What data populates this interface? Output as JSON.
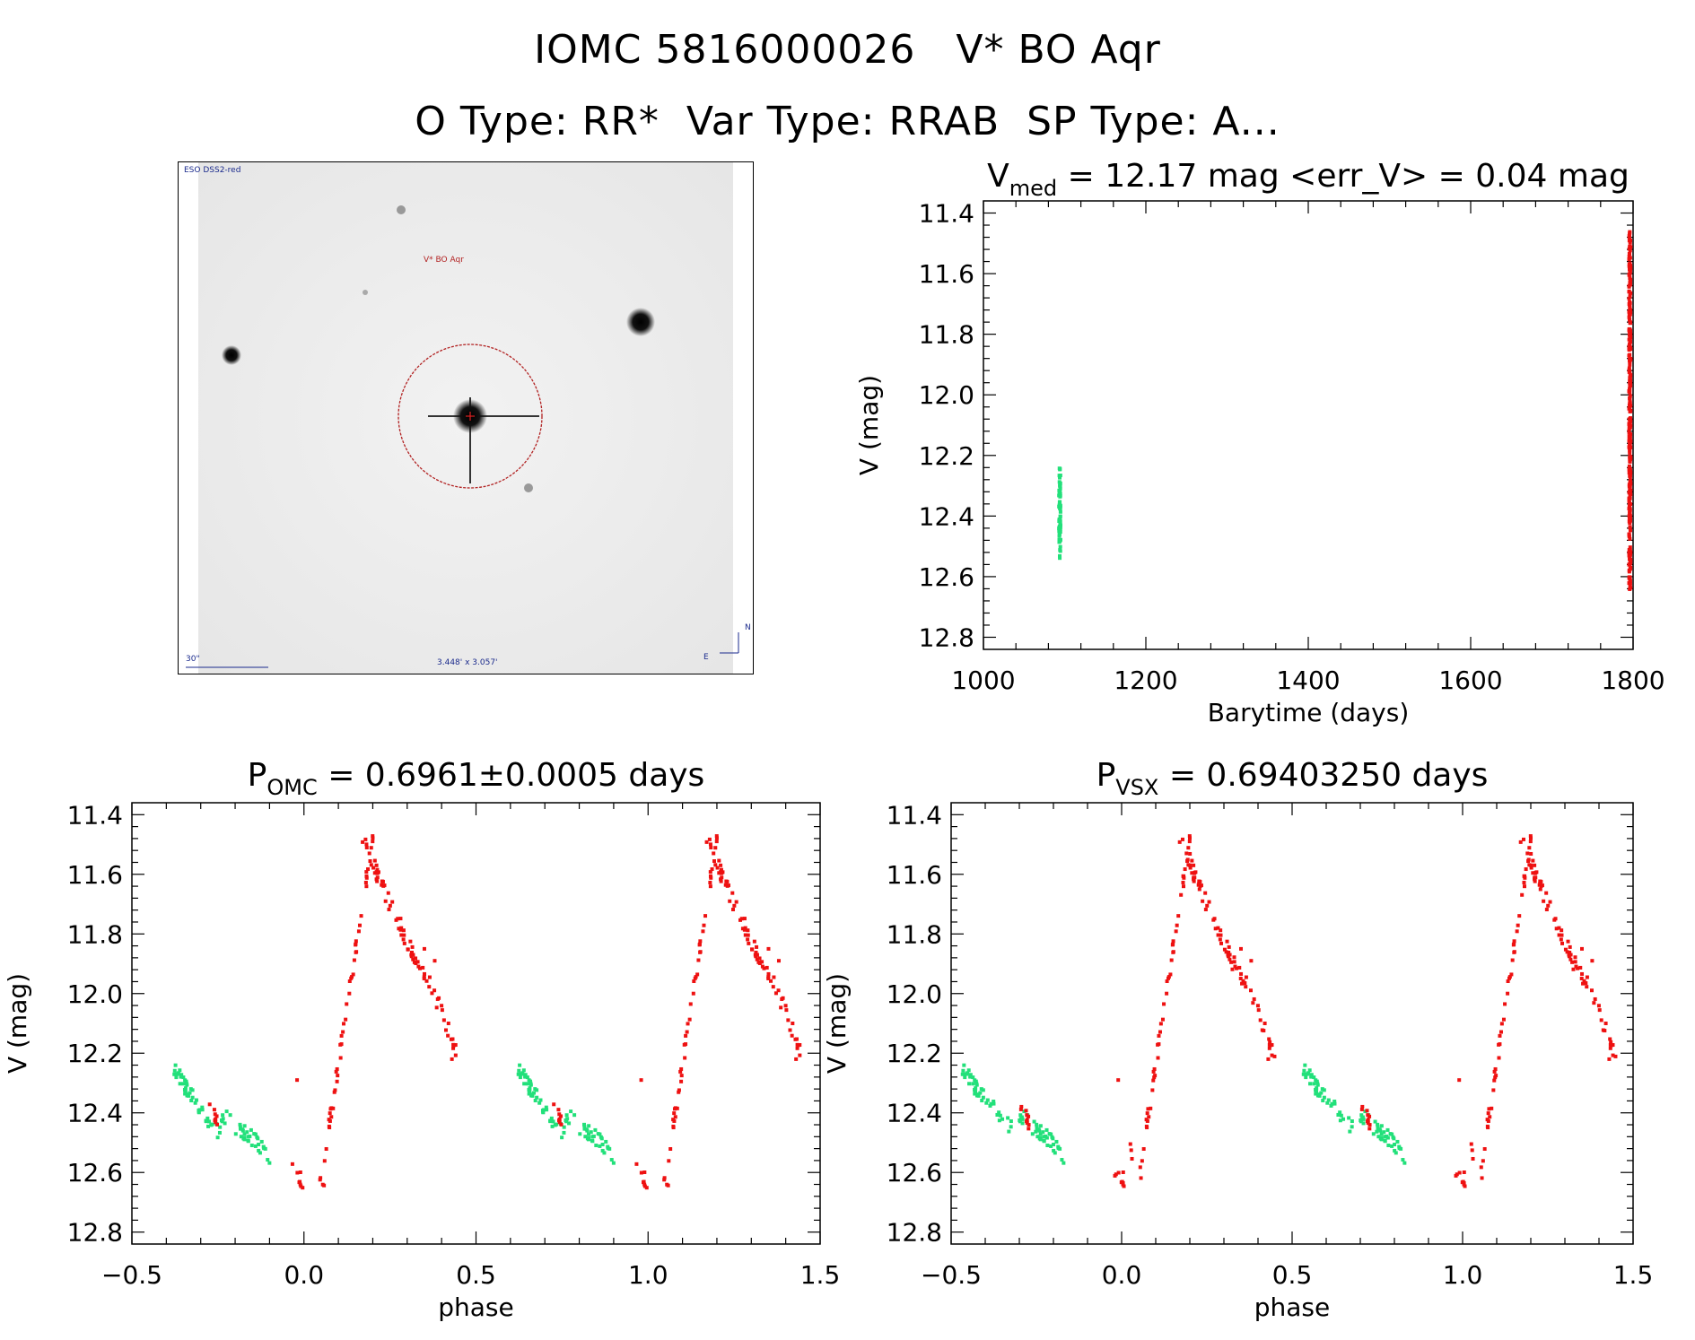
{
  "header": {
    "line1": "IOMC 5816000026   V* BO Aqr",
    "line2": "O Type: RR*  Var Type: RRAB  SP Type: A..."
  },
  "finder_chart": {
    "survey_label": "ESO DSS2-red",
    "target_label": "V* BO Aqr",
    "scale_label": "30\"",
    "size_label": "3.448' x 3.057'",
    "compass_north": "N",
    "compass_east": "E",
    "colors": {
      "stars": "#111111",
      "circle": "#b22222",
      "labels": "#1a2a8c"
    }
  },
  "chart_data": [
    {
      "type": "scatter",
      "title": "V_med = 12.17 mag <err_V> = 0.04 mag",
      "title_parts": {
        "main": "V",
        "sub": "med",
        "rest": " = 12.17 mag <err_V> = 0.04 mag"
      },
      "xlabel": "Barytime (days)",
      "ylabel": "V (mag)",
      "xlim": [
        1000,
        1800
      ],
      "ylim": [
        12.84,
        11.36
      ],
      "y_inverted": true,
      "xticks": [
        "1000",
        "1200",
        "1400",
        "1600",
        "1800"
      ],
      "yticks": [
        "11.4",
        "11.6",
        "11.8",
        "12.0",
        "12.2",
        "12.4",
        "12.6",
        "12.8"
      ],
      "series": [
        {
          "color": "#22e07a",
          "x_center": 1094,
          "y_range": [
            12.24,
            12.54
          ],
          "count": 70
        },
        {
          "color": "#ee1111",
          "x_center": 1796,
          "y_range": [
            11.46,
            12.65
          ],
          "count": 300
        }
      ]
    },
    {
      "type": "scatter",
      "title": "P_OMC = 0.6961±0.0005 days",
      "title_parts": {
        "main": "P",
        "sub": "OMC",
        "rest": " = 0.6961±0.0005 days"
      },
      "xlabel": "phase",
      "ylabel": "V (mag)",
      "xlim": [
        -0.5,
        1.5
      ],
      "ylim": [
        12.84,
        11.36
      ],
      "y_inverted": true,
      "xticks": [
        "−0.5",
        "0.0",
        "0.5",
        "1.0",
        "1.5"
      ],
      "yticks": [
        "11.4",
        "11.6",
        "11.8",
        "12.0",
        "12.2",
        "12.4",
        "12.6",
        "12.8"
      ],
      "phase_repeat": 1.0,
      "series": [
        {
          "color": "#22e07a",
          "segments": [
            {
              "x": [
                -0.38,
                -0.31
              ],
              "y": [
                12.24,
                12.38
              ],
              "count": 35
            },
            {
              "x": [
                -0.31,
                -0.24
              ],
              "y": [
                12.38,
                12.48
              ],
              "count": 18
            },
            {
              "x": [
                -0.24,
                -0.1
              ],
              "y": [
                12.4,
                12.54
              ],
              "count": 40
            }
          ]
        },
        {
          "color": "#ee1111",
          "segments": [
            {
              "x": [
                -0.28,
                -0.25
              ],
              "y": [
                12.37,
                12.44
              ],
              "count": 8
            },
            {
              "x": [
                -0.04,
                0.0
              ],
              "y": [
                12.56,
                12.64
              ],
              "count": 8
            },
            {
              "x": [
                0.04,
                0.06
              ],
              "y": [
                12.58,
                12.64
              ],
              "count": 4
            },
            {
              "x": [
                0.06,
                0.2
              ],
              "y": [
                12.55,
                11.47
              ],
              "count": 50
            },
            {
              "x": [
                0.17,
                0.22
              ],
              "y": [
                11.47,
                11.62
              ],
              "count": 18
            },
            {
              "x": [
                0.22,
                0.32
              ],
              "y": [
                11.62,
                11.88
              ],
              "count": 30
            },
            {
              "x": [
                0.32,
                0.38
              ],
              "y": [
                11.88,
                12.0
              ],
              "count": 15
            },
            {
              "x": [
                0.38,
                0.45
              ],
              "y": [
                12.0,
                12.22
              ],
              "count": 15
            }
          ],
          "points": [
            [
              -0.02,
              12.29
            ],
            [
              0.43,
              12.22
            ],
            [
              0.42,
              12.1
            ],
            [
              0.35,
              11.85
            ],
            [
              0.38,
              11.89
            ]
          ]
        }
      ]
    },
    {
      "type": "scatter",
      "title": "P_VSX = 0.69403250 days",
      "title_parts": {
        "main": "P",
        "sub": "VSX",
        "rest": " = 0.69403250 days"
      },
      "xlabel": "phase",
      "ylabel": "V (mag)",
      "xlim": [
        -0.5,
        1.5
      ],
      "ylim": [
        12.84,
        11.36
      ],
      "y_inverted": true,
      "xticks": [
        "−0.5",
        "0.0",
        "0.5",
        "1.0",
        "1.5"
      ],
      "yticks": [
        "11.4",
        "11.6",
        "11.8",
        "12.0",
        "12.2",
        "12.4",
        "12.6",
        "12.8"
      ],
      "phase_repeat": 1.0,
      "series": [
        {
          "color": "#22e07a",
          "segments": [
            {
              "x": [
                -0.47,
                -0.39
              ],
              "y": [
                12.24,
                12.38
              ],
              "count": 35
            },
            {
              "x": [
                -0.39,
                -0.32
              ],
              "y": [
                12.36,
                12.46
              ],
              "count": 14
            },
            {
              "x": [
                -0.3,
                -0.17
              ],
              "y": [
                12.4,
                12.54
              ],
              "count": 45
            }
          ]
        },
        {
          "color": "#ee1111",
          "segments": [
            {
              "x": [
                -0.3,
                -0.27
              ],
              "y": [
                12.38,
                12.44
              ],
              "count": 10
            },
            {
              "x": [
                -0.04,
                0.02
              ],
              "y": [
                12.56,
                12.64
              ],
              "count": 9
            },
            {
              "x": [
                0.02,
                0.06
              ],
              "y": [
                12.5,
                12.62
              ],
              "count": 5
            },
            {
              "x": [
                0.06,
                0.2
              ],
              "y": [
                12.55,
                11.47
              ],
              "count": 50
            },
            {
              "x": [
                0.17,
                0.22
              ],
              "y": [
                11.47,
                11.62
              ],
              "count": 18
            },
            {
              "x": [
                0.22,
                0.32
              ],
              "y": [
                11.62,
                11.88
              ],
              "count": 30
            },
            {
              "x": [
                0.32,
                0.38
              ],
              "y": [
                11.88,
                12.0
              ],
              "count": 15
            },
            {
              "x": [
                0.38,
                0.45
              ],
              "y": [
                12.0,
                12.22
              ],
              "count": 15
            }
          ],
          "points": [
            [
              -0.01,
              12.29
            ],
            [
              0.43,
              12.22
            ],
            [
              0.42,
              12.1
            ],
            [
              0.35,
              11.85
            ],
            [
              0.38,
              11.89
            ]
          ]
        }
      ]
    }
  ]
}
